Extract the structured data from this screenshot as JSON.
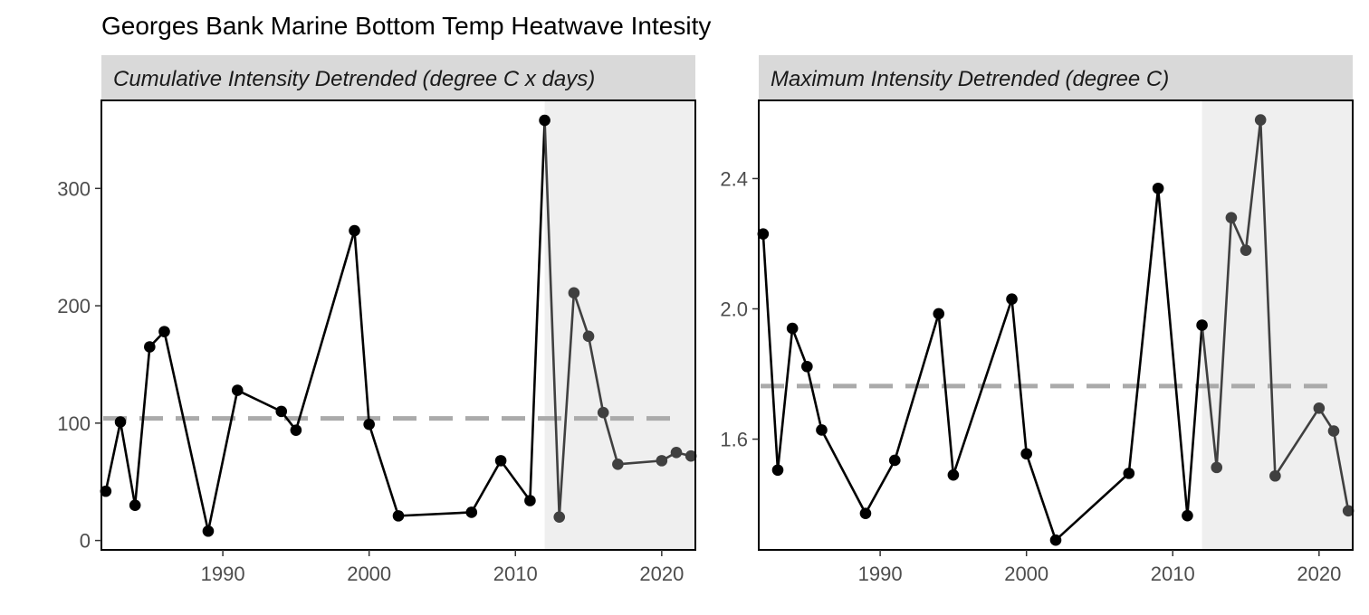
{
  "title": "Georges Bank Marine Bottom Temp Heatwave Intesity",
  "colors": {
    "recent_shade": "#efefef",
    "strip_fill": "#d9d9d9",
    "line_main": "#000000",
    "line_recent": "#404040",
    "mean_line": "#aaaaaa",
    "tick_label": "#4d4d4d"
  },
  "chart_data": [
    {
      "type": "line",
      "title": "Cumulative Intensity Detrended (degree C x days)",
      "xlim": [
        1981.7,
        2022.3
      ],
      "ylim": [
        -8,
        375
      ],
      "x_ticks": [
        1990,
        2000,
        2010,
        2020
      ],
      "y_ticks": [
        0,
        100,
        200,
        300
      ],
      "x_tick_labels": [
        "1990",
        "2000",
        "2010",
        "2020"
      ],
      "y_tick_labels": [
        "0",
        "100",
        "200",
        "300"
      ],
      "mean_line": 104,
      "recent_period_start": 2012,
      "series": [
        {
          "x": [
            1982,
            1983,
            1984,
            1985,
            1986,
            1989,
            1991,
            1994,
            1995,
            1999,
            2000,
            2002,
            2007,
            2009,
            2011,
            2012,
            2013,
            2014,
            2015,
            2016,
            2017,
            2020,
            2021,
            2022
          ],
          "y": [
            42,
            101,
            30,
            165,
            178,
            8,
            128,
            110,
            94,
            264,
            99,
            21,
            24,
            68,
            34,
            358,
            20,
            211,
            174,
            109,
            65,
            68,
            75,
            72
          ]
        }
      ]
    },
    {
      "type": "line",
      "title": "Maximum Intensity Detrended (degree C)",
      "xlim": [
        1981.7,
        2022.3
      ],
      "ylim": [
        1.26,
        2.64
      ],
      "x_ticks": [
        1990,
        2000,
        2010,
        2020
      ],
      "y_ticks": [
        1.6,
        2.0,
        2.4
      ],
      "x_tick_labels": [
        "1990",
        "2000",
        "2010",
        "2020"
      ],
      "y_tick_labels": [
        "1.6",
        "2.0",
        "2.4"
      ],
      "mean_line": 1.763,
      "recent_period_start": 2012,
      "series": [
        {
          "x": [
            1982,
            1983,
            1984,
            1985,
            1986,
            1989,
            1991,
            1994,
            1995,
            1999,
            2000,
            2002,
            2007,
            2009,
            2011,
            2012,
            2013,
            2014,
            2015,
            2016,
            2017,
            2020,
            2021,
            2022
          ],
          "y": [
            2.23,
            1.505,
            1.94,
            1.823,
            1.628,
            1.372,
            1.535,
            1.985,
            1.49,
            2.03,
            1.555,
            1.29,
            1.495,
            2.37,
            1.365,
            1.95,
            1.513,
            2.28,
            2.18,
            2.58,
            1.487,
            1.695,
            1.625,
            1.38
          ]
        }
      ]
    }
  ]
}
